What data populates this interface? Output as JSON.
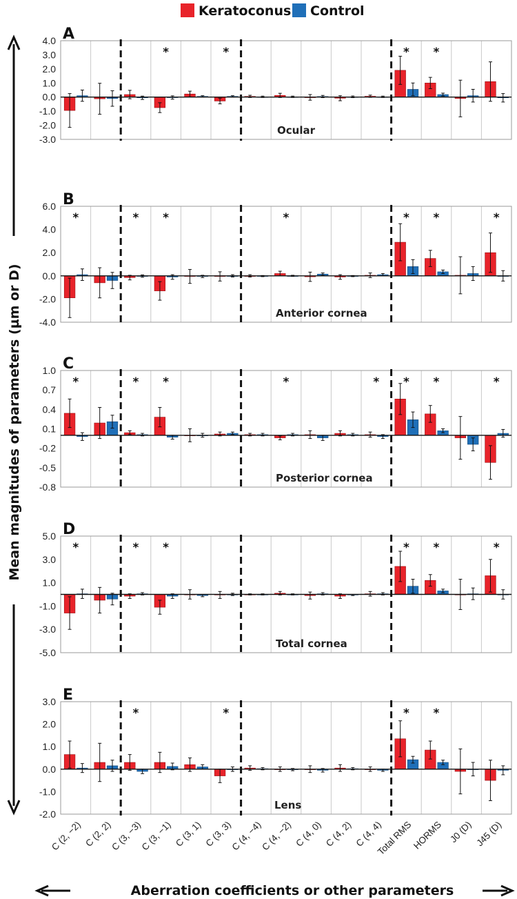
{
  "legend": [
    {
      "name": "Keratoconus",
      "color": "#e8232a"
    },
    {
      "name": "Control",
      "color": "#1f6fb8"
    }
  ],
  "axes": {
    "ylabel": "Mean magnitudes of parameters (µm or D)",
    "xlabel": "Aberration coefficients or other parameters"
  },
  "chart_data": [
    {
      "panel": "A",
      "label": "Ocular",
      "type": "bar",
      "ylim": [
        -3,
        4
      ],
      "ticks": [
        "4.0",
        "3.0",
        "2.0",
        "1.0",
        "0.0",
        "-1.0",
        "-2.0",
        "-3.0"
      ],
      "categories": [
        "C (2, −2)",
        "C (2, 2)",
        "C (3, −3)",
        "C (3, −1)",
        "C (3, 1)",
        "C (3, 3)",
        "C (4, −4)",
        "C (4, −2)",
        "C (4, 0)",
        "C (4, 2)",
        "C (4, 4)",
        "Total RMS",
        "HORMS",
        "J0 (D)",
        "J45 (D)"
      ],
      "series": [
        {
          "name": "Keratoconus",
          "values": [
            -0.95,
            -0.12,
            0.18,
            -0.75,
            0.22,
            -0.28,
            0.05,
            0.12,
            -0.02,
            -0.08,
            0.06,
            1.9,
            1.0,
            -0.1,
            1.1
          ],
          "errors": [
            1.2,
            1.1,
            0.3,
            0.35,
            0.2,
            0.2,
            0.08,
            0.15,
            0.2,
            0.18,
            0.08,
            1.0,
            0.4,
            1.3,
            1.4
          ]
        },
        {
          "name": "Control",
          "values": [
            0.1,
            -0.1,
            -0.05,
            -0.03,
            0.05,
            0.05,
            0.02,
            0.02,
            0.04,
            0.02,
            0.02,
            0.55,
            0.18,
            0.1,
            -0.05
          ],
          "errors": [
            0.4,
            0.55,
            0.12,
            0.12,
            0.05,
            0.05,
            0.05,
            0.05,
            0.08,
            0.06,
            0.05,
            0.45,
            0.1,
            0.45,
            0.3
          ]
        }
      ],
      "significant": [
        3,
        5,
        11,
        12
      ]
    },
    {
      "panel": "B",
      "label": "Anterior cornea",
      "type": "bar",
      "ylim": [
        -4,
        6
      ],
      "ticks": [
        "6.0",
        "4.0",
        "2.0",
        "0.0",
        "-2.0",
        "-4.0"
      ],
      "categories": [
        "C (2, −2)",
        "C (2, 2)",
        "C (3, −3)",
        "C (3, −1)",
        "C (3, 1)",
        "C (3, 3)",
        "C (4, −4)",
        "C (4, −2)",
        "C (4, 0)",
        "C (4, 2)",
        "C (4, 4)",
        "Total RMS",
        "HORMS",
        "J0 (D)",
        "J45 (D)"
      ],
      "series": [
        {
          "name": "Keratoconus",
          "values": [
            -1.9,
            -0.6,
            -0.15,
            -1.3,
            -0.05,
            -0.05,
            0.0,
            0.2,
            -0.08,
            -0.1,
            0.05,
            2.9,
            1.5,
            0.05,
            2.0
          ],
          "errors": [
            1.7,
            1.3,
            0.2,
            0.8,
            0.6,
            0.4,
            0.1,
            0.2,
            0.4,
            0.2,
            0.2,
            1.6,
            0.7,
            1.6,
            1.7
          ]
        },
        {
          "name": "Control",
          "values": [
            0.1,
            -0.4,
            -0.02,
            -0.1,
            -0.05,
            0.0,
            -0.02,
            0.0,
            0.15,
            -0.02,
            0.1,
            0.8,
            0.35,
            0.2,
            0.0
          ],
          "errors": [
            0.5,
            0.7,
            0.1,
            0.2,
            0.1,
            0.1,
            0.05,
            0.05,
            0.1,
            0.05,
            0.1,
            0.6,
            0.15,
            0.6,
            0.45
          ]
        }
      ],
      "significant": [
        0,
        2,
        3,
        7,
        11,
        12,
        14
      ]
    },
    {
      "panel": "C",
      "label": "Posterior cornea",
      "type": "bar",
      "ylim": [
        -0.8,
        1.0
      ],
      "ticks": [
        "1.0",
        "0.7",
        "0.4",
        "0.1",
        "-0.2",
        "-0.5",
        "-0.8"
      ],
      "categories": [
        "C (2, −2)",
        "C (2, 2)",
        "C (3, −3)",
        "C (3, −1)",
        "C (3, 1)",
        "C (3, 3)",
        "C (4, −4)",
        "C (4, −2)",
        "C (4, 0)",
        "C (4, 2)",
        "C (4, 4)",
        "Total RMS",
        "HORMS",
        "J0 (D)",
        "J45 (D)"
      ],
      "series": [
        {
          "name": "Keratoconus",
          "values": [
            0.34,
            0.19,
            0.04,
            0.28,
            0.0,
            0.02,
            0.01,
            -0.04,
            0.01,
            0.03,
            0.01,
            0.56,
            0.33,
            -0.04,
            -0.42
          ],
          "errors": [
            0.22,
            0.24,
            0.03,
            0.15,
            0.1,
            0.03,
            0.02,
            0.03,
            0.06,
            0.04,
            0.04,
            0.24,
            0.13,
            0.33,
            0.26
          ]
        },
        {
          "name": "Control",
          "values": [
            -0.02,
            0.21,
            0.01,
            -0.03,
            0.0,
            0.03,
            0.01,
            0.01,
            -0.04,
            0.01,
            -0.02,
            0.24,
            0.07,
            -0.14,
            0.03
          ],
          "errors": [
            0.06,
            0.1,
            0.02,
            0.03,
            0.03,
            0.02,
            0.02,
            0.02,
            0.04,
            0.02,
            0.03,
            0.12,
            0.03,
            0.1,
            0.06
          ]
        }
      ],
      "significant": [
        0,
        2,
        3,
        7,
        10,
        11,
        12,
        14
      ]
    },
    {
      "panel": "D",
      "label": "Total cornea",
      "type": "bar",
      "ylim": [
        -5,
        5
      ],
      "ticks": [
        "5.0",
        "3.0",
        "1.0",
        "-1.0",
        "-3.0",
        "-5.0"
      ],
      "categories": [
        "C (2, −2)",
        "C (2, 2)",
        "C (3, −3)",
        "C (3, −1)",
        "C (3, 1)",
        "C (3, 3)",
        "C (4, −4)",
        "C (4, −2)",
        "C (4, 0)",
        "C (4, 2)",
        "C (4, 4)",
        "Total RMS",
        "HORMS",
        "J0 (D)",
        "J45 (D)"
      ],
      "series": [
        {
          "name": "Keratoconus",
          "values": [
            -1.6,
            -0.5,
            -0.15,
            -1.1,
            0.0,
            -0.05,
            0.0,
            0.1,
            -0.1,
            -0.15,
            0.05,
            2.4,
            1.2,
            0.0,
            1.6
          ],
          "errors": [
            1.4,
            1.1,
            0.2,
            0.6,
            0.4,
            0.3,
            0.05,
            0.15,
            0.3,
            0.2,
            0.2,
            1.3,
            0.5,
            1.3,
            1.4
          ]
        },
        {
          "name": "Control",
          "values": [
            0.05,
            -0.4,
            0.05,
            -0.15,
            -0.1,
            0.0,
            0.0,
            0.0,
            0.05,
            -0.05,
            0.05,
            0.7,
            0.3,
            0.05,
            0.0
          ],
          "errors": [
            0.4,
            0.5,
            0.1,
            0.2,
            0.1,
            0.1,
            0.05,
            0.05,
            0.1,
            0.05,
            0.1,
            0.6,
            0.15,
            0.5,
            0.4
          ]
        }
      ],
      "significant": [
        0,
        2,
        3,
        11,
        12,
        14
      ]
    },
    {
      "panel": "E",
      "label": "Lens",
      "type": "bar",
      "ylim": [
        -2,
        3
      ],
      "ticks": [
        "3.0",
        "2.0",
        "1.0",
        "0.0",
        "-1.0",
        "-2.0"
      ],
      "categories": [
        "C (2, −2)",
        "C (2, 2)",
        "C (3, −3)",
        "C (3, −1)",
        "C (3, 1)",
        "C (3, 3)",
        "C (4, −4)",
        "C (4, −2)",
        "C (4, 0)",
        "C (4, 2)",
        "C (4, 4)",
        "Total RMS",
        "HORMS",
        "J0 (D)",
        "J45 (D)"
      ],
      "series": [
        {
          "name": "Keratoconus",
          "values": [
            0.65,
            0.3,
            0.3,
            0.3,
            0.2,
            -0.3,
            0.05,
            0.0,
            0.0,
            0.05,
            0.0,
            1.35,
            0.85,
            -0.1,
            -0.5
          ],
          "errors": [
            0.6,
            0.85,
            0.35,
            0.45,
            0.3,
            0.3,
            0.1,
            0.1,
            0.15,
            0.15,
            0.1,
            0.8,
            0.4,
            1.0,
            0.9
          ]
        },
        {
          "name": "Control",
          "values": [
            0.05,
            0.15,
            -0.1,
            0.12,
            0.1,
            0.0,
            0.02,
            -0.02,
            -0.05,
            0.02,
            -0.05,
            0.42,
            0.3,
            0.0,
            -0.05
          ],
          "errors": [
            0.2,
            0.25,
            0.1,
            0.15,
            0.1,
            0.1,
            0.05,
            0.05,
            0.08,
            0.05,
            0.05,
            0.15,
            0.1,
            0.3,
            0.2
          ]
        }
      ],
      "significant": [
        2,
        5,
        11,
        12
      ]
    }
  ]
}
